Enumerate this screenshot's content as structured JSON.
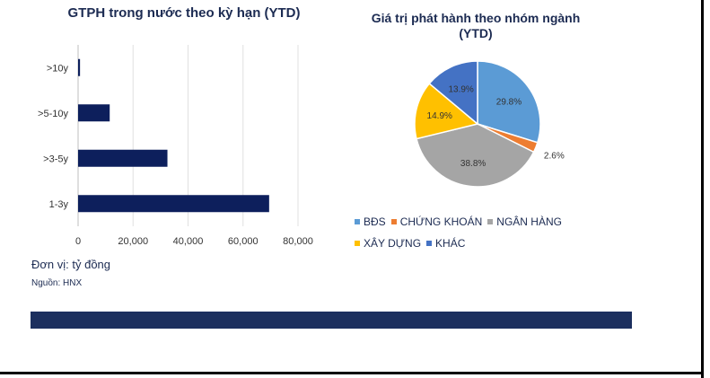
{
  "chart_data": [
    {
      "type": "bar",
      "orientation": "horizontal",
      "title": "GTPH trong nước theo kỳ hạn (YTD)",
      "categories": [
        ">10y",
        ">5-10y",
        ">3-5y",
        "1-3y"
      ],
      "values": [
        700,
        11500,
        32500,
        69500
      ],
      "xlim": [
        0,
        80000
      ],
      "xticks": [
        "0",
        "20,000",
        "40,000",
        "60,000",
        "80,000"
      ],
      "grid": true,
      "color": "#0d1f5c"
    },
    {
      "type": "pie",
      "title_line1": "Giá trị phát hành theo nhóm ngành",
      "title_line2": "(YTD)",
      "labels": [
        "BĐS",
        "CHỨNG KHOÁN",
        "NGÂN HÀNG",
        "XÂY DỰNG",
        "KHÁC"
      ],
      "values": [
        29.8,
        2.6,
        38.8,
        14.9,
        13.9
      ],
      "value_labels": [
        "29.8%",
        "2.6%",
        "38.8%",
        "14.9%",
        "13.9%"
      ],
      "colors": [
        "#5b9bd5",
        "#ed7d31",
        "#a5a5a5",
        "#ffc000",
        "#4472c4"
      ],
      "legend_position": "bottom"
    }
  ],
  "footer": {
    "unit": "Đơn vị: tỷ đồng",
    "source": "Nguồn: HNX"
  }
}
